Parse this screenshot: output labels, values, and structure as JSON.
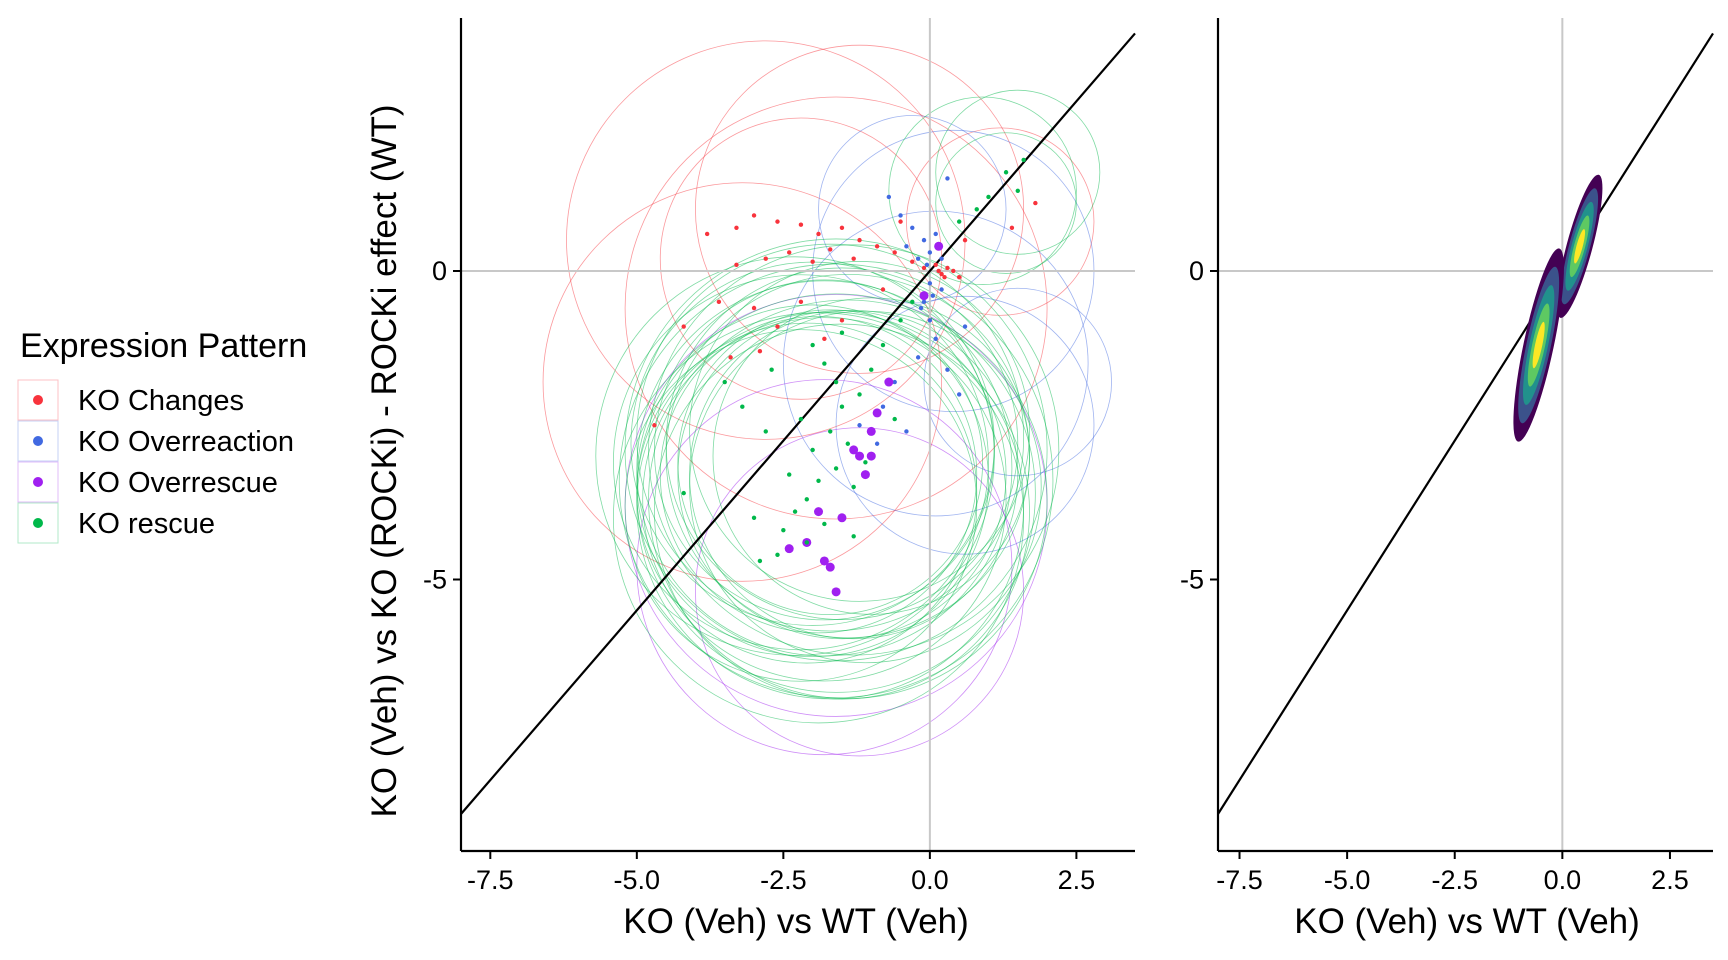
{
  "chart_data": [
    {
      "type": "scatter",
      "xlabel": "KO (Veh) vs WT (Veh)",
      "ylabel": "KO (Veh) vs KO (ROCKi) - ROCKi effect (WT)",
      "xlim": [
        -8.0,
        3.5
      ],
      "ylim": [
        -9.4,
        4.1
      ],
      "x_ticks": [
        {
          "value": -7.5,
          "label": "-7.5"
        },
        {
          "value": -5.0,
          "label": "-5.0"
        },
        {
          "value": -2.5,
          "label": "-2.5"
        },
        {
          "value": 0.0,
          "label": "0.0"
        },
        {
          "value": 2.5,
          "label": "2.5"
        }
      ],
      "y_ticks": [
        {
          "value": 0,
          "label": "0"
        },
        {
          "value": -5,
          "label": "-5"
        }
      ],
      "reference_lines": [
        "x = 0",
        "y = 0",
        "diagonal y = 1.1x"
      ],
      "grid": false,
      "legend": {
        "title": "Expression Pattern",
        "position": "left",
        "entries": [
          {
            "label": "KO Changes",
            "color": "#f8333c"
          },
          {
            "label": "KO Overreaction",
            "color": "#4169e1"
          },
          {
            "label": "KO Overrescue",
            "color": "#a020f0"
          },
          {
            "label": "KO rescue",
            "color": "#00b84a"
          }
        ]
      },
      "series": [
        {
          "name": "KO Changes",
          "color": "#f8333c",
          "points": [
            [
              -3.0,
              0.9
            ],
            [
              -2.6,
              0.8
            ],
            [
              -2.2,
              0.75
            ],
            [
              -1.9,
              0.6
            ],
            [
              -1.5,
              0.7
            ],
            [
              -1.2,
              0.5
            ],
            [
              -2.8,
              0.2
            ],
            [
              -3.3,
              0.1
            ],
            [
              -2.4,
              0.3
            ],
            [
              -2.0,
              0.15
            ],
            [
              -1.7,
              0.35
            ],
            [
              -1.3,
              0.2
            ],
            [
              -0.9,
              0.4
            ],
            [
              -0.6,
              0.3
            ],
            [
              -0.3,
              0.15
            ],
            [
              -0.1,
              0.05
            ],
            [
              0.1,
              0.1
            ],
            [
              0.2,
              -0.05
            ],
            [
              0.3,
              0.05
            ],
            [
              0.4,
              0.0
            ],
            [
              0.5,
              -0.1
            ],
            [
              0.15,
              0.0
            ],
            [
              0.25,
              -0.1
            ],
            [
              -3.6,
              -0.5
            ],
            [
              -4.2,
              -0.9
            ],
            [
              -3.0,
              -0.6
            ],
            [
              -2.6,
              -0.9
            ],
            [
              -2.2,
              -0.5
            ],
            [
              -1.8,
              -1.1
            ],
            [
              -4.7,
              -2.5
            ],
            [
              -3.4,
              -1.4
            ],
            [
              -2.9,
              -1.3
            ],
            [
              -1.5,
              -0.8
            ],
            [
              -0.8,
              -0.3
            ],
            [
              1.8,
              1.1
            ],
            [
              1.4,
              0.7
            ],
            [
              -3.8,
              0.6
            ],
            [
              -3.3,
              0.7
            ],
            [
              -0.5,
              0.8
            ],
            [
              0.6,
              0.5
            ]
          ]
        },
        {
          "name": "KO Overreaction",
          "color": "#4169e1",
          "points": [
            [
              -0.5,
              0.9
            ],
            [
              -0.3,
              0.7
            ],
            [
              -0.1,
              0.5
            ],
            [
              0.0,
              0.3
            ],
            [
              -0.2,
              0.2
            ],
            [
              -0.4,
              0.4
            ],
            [
              0.1,
              0.6
            ],
            [
              0.2,
              0.2
            ],
            [
              0.0,
              -0.2
            ],
            [
              -0.1,
              -0.5
            ],
            [
              0.0,
              -0.8
            ],
            [
              0.1,
              -1.1
            ],
            [
              -0.2,
              -1.4
            ],
            [
              0.3,
              -1.6
            ],
            [
              -0.6,
              -1.8
            ],
            [
              -0.8,
              -2.2
            ],
            [
              -0.4,
              -2.6
            ],
            [
              0.5,
              -2.0
            ],
            [
              -1.2,
              -2.5
            ],
            [
              -0.9,
              -2.8
            ],
            [
              0.3,
              1.5
            ],
            [
              -0.7,
              1.2
            ],
            [
              0.2,
              -0.3
            ],
            [
              -0.05,
              0.1
            ],
            [
              0.05,
              -0.4
            ],
            [
              -0.15,
              -0.6
            ],
            [
              0.6,
              -0.9
            ]
          ]
        },
        {
          "name": "KO Overrescue",
          "color": "#a020f0",
          "points": [
            [
              -2.4,
              -4.5
            ],
            [
              -2.1,
              -4.4
            ],
            [
              -1.8,
              -4.7
            ],
            [
              -1.6,
              -5.2
            ],
            [
              -1.7,
              -4.8
            ],
            [
              -1.5,
              -4.0
            ],
            [
              -1.9,
              -3.9
            ],
            [
              -1.2,
              -3.0
            ],
            [
              -1.0,
              -2.6
            ],
            [
              -1.3,
              -2.9
            ],
            [
              -1.1,
              -3.3
            ],
            [
              -0.9,
              -2.3
            ],
            [
              -0.7,
              -1.8
            ],
            [
              -1.0,
              -3.0
            ],
            [
              -0.1,
              -0.4
            ],
            [
              0.15,
              0.4
            ]
          ]
        },
        {
          "name": "KO rescue",
          "color": "#00b84a",
          "points": [
            [
              -2.0,
              -1.2
            ],
            [
              -1.8,
              -1.5
            ],
            [
              -1.6,
              -1.8
            ],
            [
              -1.5,
              -2.2
            ],
            [
              -1.7,
              -2.6
            ],
            [
              -1.4,
              -2.8
            ],
            [
              -1.6,
              -3.2
            ],
            [
              -1.9,
              -3.4
            ],
            [
              -2.1,
              -3.7
            ],
            [
              -2.3,
              -3.9
            ],
            [
              -2.5,
              -4.2
            ],
            [
              -2.6,
              -4.6
            ],
            [
              -2.2,
              -2.4
            ],
            [
              -2.0,
              -2.9
            ],
            [
              -1.2,
              -2.0
            ],
            [
              -1.0,
              -1.6
            ],
            [
              -0.8,
              -1.2
            ],
            [
              -0.5,
              -0.8
            ],
            [
              -0.3,
              -0.5
            ],
            [
              -1.3,
              -3.5
            ],
            [
              -1.1,
              -3.1
            ],
            [
              -2.4,
              -3.3
            ],
            [
              -2.8,
              -2.6
            ],
            [
              -3.2,
              -2.2
            ],
            [
              -1.8,
              -4.1
            ],
            [
              -2.1,
              -4.4
            ],
            [
              1.0,
              1.2
            ],
            [
              1.3,
              1.6
            ],
            [
              1.5,
              1.3
            ],
            [
              1.6,
              1.8
            ],
            [
              0.8,
              1.0
            ],
            [
              -1.5,
              -1.0
            ],
            [
              -2.7,
              -1.6
            ],
            [
              -3.5,
              -1.8
            ],
            [
              -4.2,
              -3.6
            ],
            [
              -3.0,
              -4.0
            ],
            [
              0.5,
              0.8
            ],
            [
              -0.6,
              -2.4
            ],
            [
              -2.9,
              -4.7
            ],
            [
              -1.3,
              -4.3
            ]
          ]
        }
      ],
      "uncertainty_circles": {
        "KO Changes": [
          [
            -2.8,
            0.5,
            3.4
          ],
          [
            -1.6,
            -0.6,
            3.6
          ],
          [
            -3.2,
            -1.8,
            3.4
          ],
          [
            -1.2,
            1.0,
            2.8
          ],
          [
            1.2,
            0.8,
            1.6
          ],
          [
            -2.2,
            0.2,
            2.4
          ]
        ],
        "KO Overreaction": [
          [
            0.4,
            0.0,
            2.4
          ],
          [
            0.1,
            -1.5,
            2.6
          ],
          [
            -0.3,
            1.0,
            1.6
          ],
          [
            1.5,
            -1.8,
            1.6
          ],
          [
            0.6,
            -2.5,
            2.2
          ]
        ],
        "KO Overrescue": [
          [
            -1.8,
            -4.8,
            3.2
          ],
          [
            -1.6,
            -3.8,
            3.6
          ],
          [
            -1.2,
            -5.2,
            2.8
          ]
        ],
        "KO rescue": [
          [
            -1.8,
            -3.2,
            3.2
          ],
          [
            -1.6,
            -3.6,
            3.4
          ],
          [
            -2.0,
            -3.4,
            3.0
          ],
          [
            -1.4,
            -3.0,
            3.1
          ],
          [
            -1.7,
            -3.8,
            3.3
          ],
          [
            -2.2,
            -3.1,
            3.2
          ],
          [
            -1.5,
            -2.8,
            3.0
          ],
          [
            -1.9,
            -4.0,
            3.5
          ],
          [
            -1.3,
            -3.3,
            2.8
          ],
          [
            -2.1,
            -3.6,
            2.9
          ],
          [
            -1.6,
            -2.9,
            3.6
          ],
          [
            -1.8,
            -3.7,
            3.1
          ],
          [
            -1.2,
            -2.6,
            2.9
          ],
          [
            -2.3,
            -3.0,
            3.4
          ],
          [
            -1.5,
            -3.9,
            3.2
          ],
          [
            -1.7,
            -2.7,
            3.3
          ],
          [
            -1.1,
            -3.5,
            3.0
          ],
          [
            -2.0,
            -2.8,
            3.1
          ],
          [
            -1.4,
            -3.7,
            3.4
          ],
          [
            -1.9,
            -3.3,
            2.7
          ],
          [
            -1.6,
            -3.4,
            3.7
          ],
          [
            -1.3,
            -2.9,
            3.5
          ],
          [
            -2.2,
            -3.8,
            3.0
          ],
          [
            -1.0,
            -3.0,
            2.7
          ],
          [
            1.3,
            1.1,
            1.2
          ],
          [
            1.5,
            1.6,
            1.4
          ],
          [
            0.9,
            1.3,
            1.6
          ],
          [
            -1.7,
            -3.1,
            2.6
          ],
          [
            -1.5,
            -3.3,
            2.8
          ],
          [
            -1.8,
            -2.9,
            2.9
          ]
        ]
      }
    },
    {
      "type": "density",
      "xlabel": "KO (Veh) vs WT (Veh)",
      "xlim": [
        -8.0,
        3.5
      ],
      "ylim": [
        -9.4,
        4.1
      ],
      "x_ticks": [
        {
          "value": -7.5,
          "label": "-7.5"
        },
        {
          "value": -5.0,
          "label": "-5.0"
        },
        {
          "value": -2.5,
          "label": "-2.5"
        },
        {
          "value": 0.0,
          "label": "0.0"
        },
        {
          "value": 2.5,
          "label": "2.5"
        }
      ],
      "y_ticks": [
        {
          "value": 0,
          "label": "0"
        },
        {
          "value": -5,
          "label": "-5"
        }
      ],
      "reference_lines": [
        "x = 0",
        "y = 0",
        "diagonal y = 1.1x"
      ],
      "grid": false,
      "density_palette": [
        "#440154",
        "#3b528b",
        "#21918c",
        "#5ec962",
        "#fde725"
      ],
      "density_clusters": [
        {
          "center": [
            0.4,
            0.4
          ],
          "extent": [
            0.3,
            1.2
          ],
          "angle_deg": 15
        },
        {
          "center": [
            -0.55,
            -1.2
          ],
          "extent": [
            0.35,
            1.6
          ],
          "angle_deg": 12
        }
      ]
    }
  ]
}
